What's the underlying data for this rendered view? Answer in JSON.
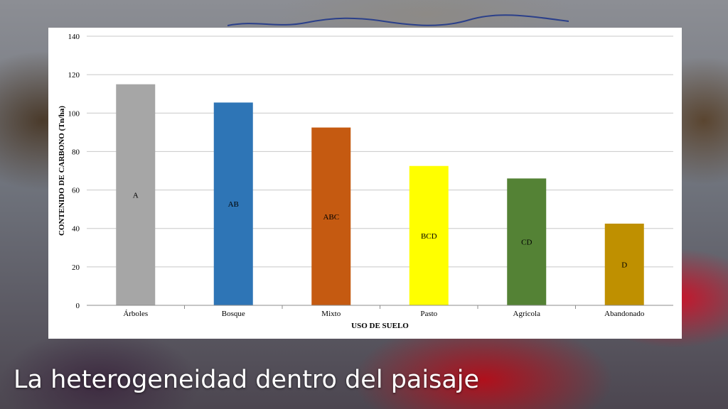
{
  "slide": {
    "title": "La heterogeneidad dentro del paisaje"
  },
  "chart_data": {
    "type": "bar",
    "categories": [
      "Árboles",
      "Bosque",
      "Mixto",
      "Pasto",
      "Agricola",
      "Abandonado"
    ],
    "values": [
      115,
      105.5,
      92.5,
      72.5,
      66,
      42.5
    ],
    "bar_labels": [
      "A",
      "AB",
      "ABC",
      "BCD",
      "CD",
      "D"
    ],
    "colors": [
      "#a6a6a6",
      "#2e75b6",
      "#c55a11",
      "#ffff00",
      "#548235",
      "#bf9000"
    ],
    "xlabel": "USO DE SUELO",
    "ylabel": "CONTENIDO DE CARBONO (Tn/ha)",
    "ylim": [
      0,
      140
    ],
    "yticks": [
      0,
      20,
      40,
      60,
      80,
      100,
      120,
      140
    ],
    "grid": true,
    "legend": "none"
  }
}
